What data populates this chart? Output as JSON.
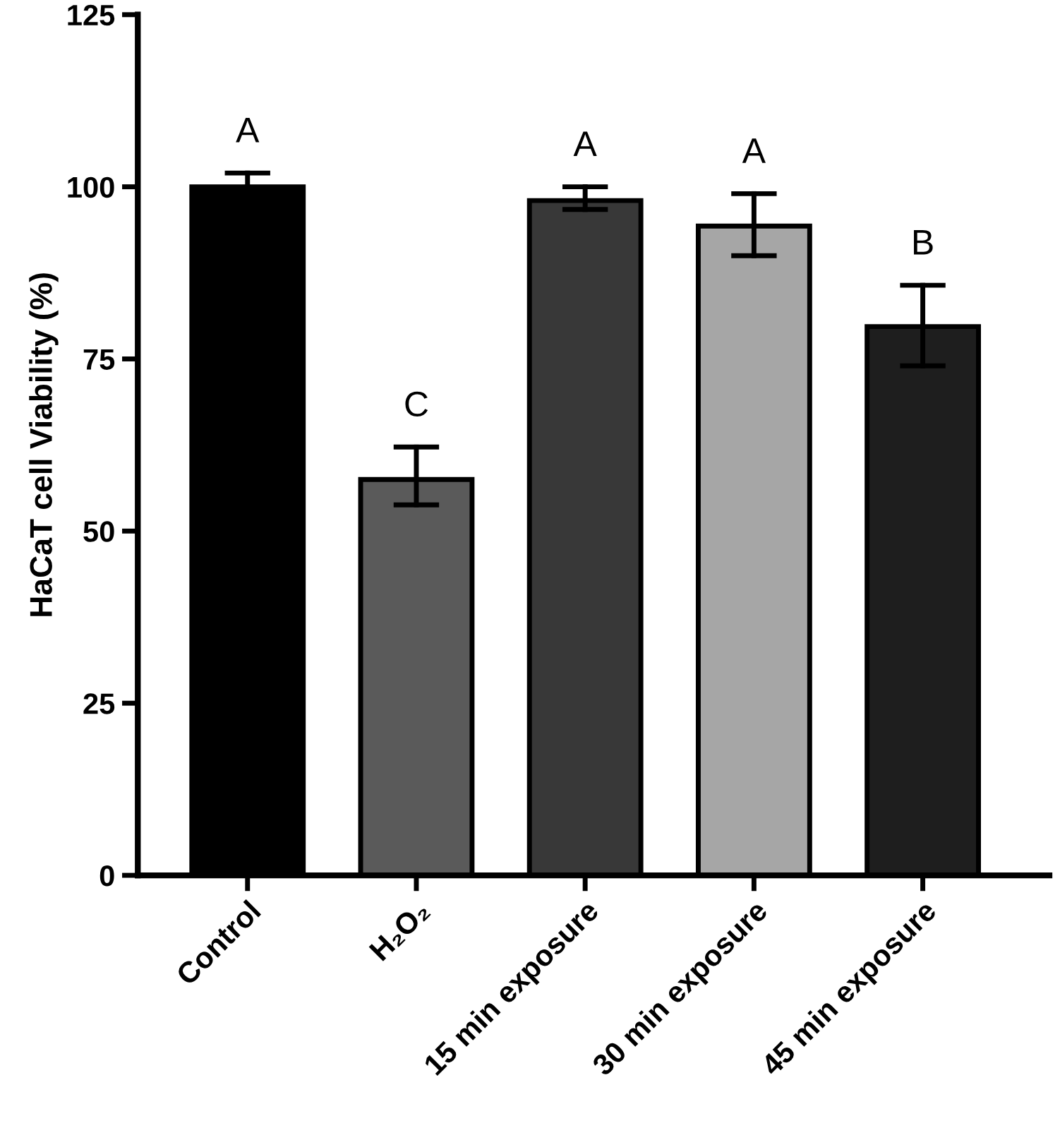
{
  "chart_data": {
    "type": "bar",
    "ylabel": "HaCaT cell Viability (%)",
    "categories": [
      "Control",
      "H₂O₂",
      "15 min exposure",
      "30 min exposure",
      "45 min exposure"
    ],
    "values": [
      100,
      57.5,
      98,
      94.3,
      79.7
    ],
    "errors": [
      [
        100,
        102
      ],
      [
        53.8,
        62.2
      ],
      [
        96.7,
        100
      ],
      [
        90,
        99
      ],
      [
        74,
        85.7
      ]
    ],
    "colors": [
      "#000000",
      "#5a5a5a",
      "#383838",
      "#a6a6a6",
      "#1e1e1e"
    ],
    "ylim": [
      0,
      125
    ],
    "yticks": [
      0,
      25,
      50,
      75,
      100,
      125
    ],
    "grid": false,
    "annotations": [
      "A",
      "C",
      "A",
      "A",
      "B"
    ]
  }
}
